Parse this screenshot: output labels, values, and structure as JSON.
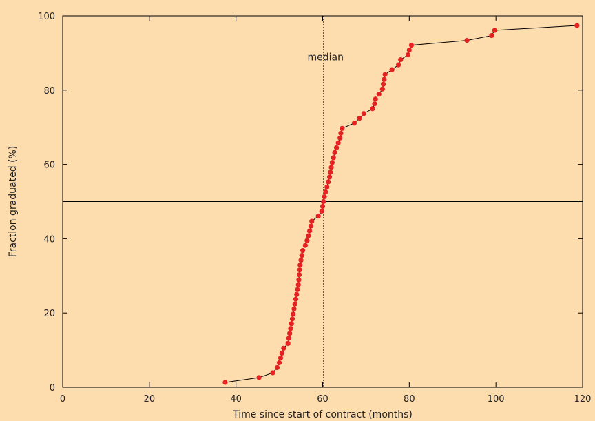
{
  "chart_data": {
    "type": "scatter",
    "title": "",
    "xlabel": "Time since start of contract (months)",
    "ylabel": "Fraction graduated (%)",
    "xlim": [
      0,
      120
    ],
    "ylim": [
      0,
      100
    ],
    "xticks": [
      0,
      20,
      40,
      60,
      80,
      100,
      120
    ],
    "yticks": [
      0,
      20,
      40,
      60,
      80,
      100
    ],
    "grid": false,
    "legend": "none",
    "series": [
      {
        "style": "line+markers",
        "color": "#e52222",
        "line_color": "#000000",
        "points": [
          [
            37.5,
            1.3
          ],
          [
            45.3,
            2.6
          ],
          [
            48.5,
            3.9
          ],
          [
            49.5,
            5.3
          ],
          [
            50.0,
            6.6
          ],
          [
            50.3,
            7.9
          ],
          [
            50.6,
            9.2
          ],
          [
            51.0,
            10.5
          ],
          [
            52.0,
            11.8
          ],
          [
            52.2,
            13.2
          ],
          [
            52.4,
            14.5
          ],
          [
            52.6,
            15.8
          ],
          [
            52.8,
            17.1
          ],
          [
            53.0,
            18.4
          ],
          [
            53.2,
            19.7
          ],
          [
            53.4,
            21.1
          ],
          [
            53.6,
            22.4
          ],
          [
            53.8,
            23.7
          ],
          [
            54.0,
            25.0
          ],
          [
            54.2,
            26.3
          ],
          [
            54.4,
            27.6
          ],
          [
            54.5,
            28.9
          ],
          [
            54.6,
            30.3
          ],
          [
            54.7,
            31.6
          ],
          [
            54.8,
            32.9
          ],
          [
            55.0,
            34.2
          ],
          [
            55.2,
            35.5
          ],
          [
            55.4,
            36.8
          ],
          [
            56.0,
            38.2
          ],
          [
            56.4,
            39.5
          ],
          [
            56.7,
            40.8
          ],
          [
            57.0,
            42.1
          ],
          [
            57.3,
            43.4
          ],
          [
            57.5,
            44.7
          ],
          [
            59.0,
            46.1
          ],
          [
            59.8,
            47.4
          ],
          [
            60.0,
            48.7
          ],
          [
            60.2,
            50.0
          ],
          [
            60.4,
            51.3
          ],
          [
            60.7,
            52.6
          ],
          [
            61.0,
            53.9
          ],
          [
            61.3,
            55.3
          ],
          [
            61.6,
            56.6
          ],
          [
            61.8,
            57.9
          ],
          [
            62.0,
            59.2
          ],
          [
            62.2,
            60.5
          ],
          [
            62.5,
            61.8
          ],
          [
            62.8,
            63.2
          ],
          [
            63.2,
            64.5
          ],
          [
            63.6,
            65.8
          ],
          [
            64.0,
            67.1
          ],
          [
            64.2,
            68.4
          ],
          [
            64.5,
            69.7
          ],
          [
            67.3,
            71.1
          ],
          [
            68.5,
            72.4
          ],
          [
            69.5,
            73.7
          ],
          [
            71.5,
            75.0
          ],
          [
            72.0,
            76.3
          ],
          [
            72.2,
            77.6
          ],
          [
            73.0,
            78.9
          ],
          [
            73.8,
            80.3
          ],
          [
            74.0,
            81.6
          ],
          [
            74.2,
            82.9
          ],
          [
            74.4,
            84.2
          ],
          [
            76.0,
            85.5
          ],
          [
            77.5,
            86.8
          ],
          [
            78.0,
            88.2
          ],
          [
            79.7,
            89.5
          ],
          [
            80.0,
            90.8
          ],
          [
            80.5,
            92.1
          ],
          [
            93.3,
            93.4
          ],
          [
            99.0,
            94.7
          ],
          [
            99.7,
            96.1
          ],
          [
            118.7,
            97.4
          ]
        ]
      }
    ],
    "reference_lines": [
      {
        "orientation": "horizontal",
        "value": 50,
        "style": "solid"
      },
      {
        "orientation": "vertical",
        "value": 60.2,
        "style": "dotted"
      }
    ],
    "annotations": [
      {
        "text": "median",
        "x": 60.2,
        "y": 89
      }
    ]
  }
}
